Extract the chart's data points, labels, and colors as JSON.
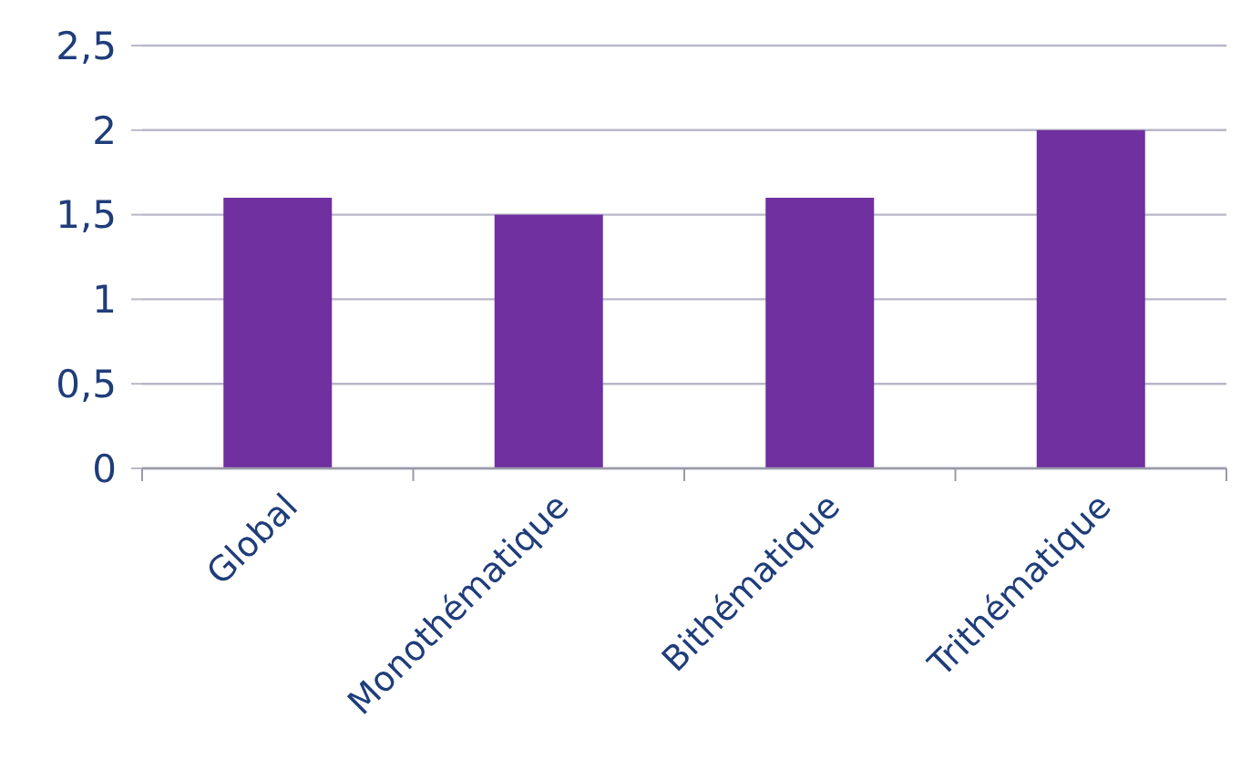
{
  "chart_data": {
    "type": "bar",
    "categories": [
      "Global",
      "Monothématique",
      "Bithématique",
      "Trithématique"
    ],
    "values": [
      1.6,
      1.5,
      1.6,
      2.0
    ],
    "color": "#7030a0",
    "ylim": [
      0,
      2.5
    ],
    "yticks": [
      0,
      {
        "value": 0.5,
        "label": "0,5"
      },
      1,
      {
        "value": 1.5,
        "label": "1,5"
      },
      2,
      {
        "value": 2.5,
        "label": "2,5"
      }
    ],
    "grid": "y"
  }
}
